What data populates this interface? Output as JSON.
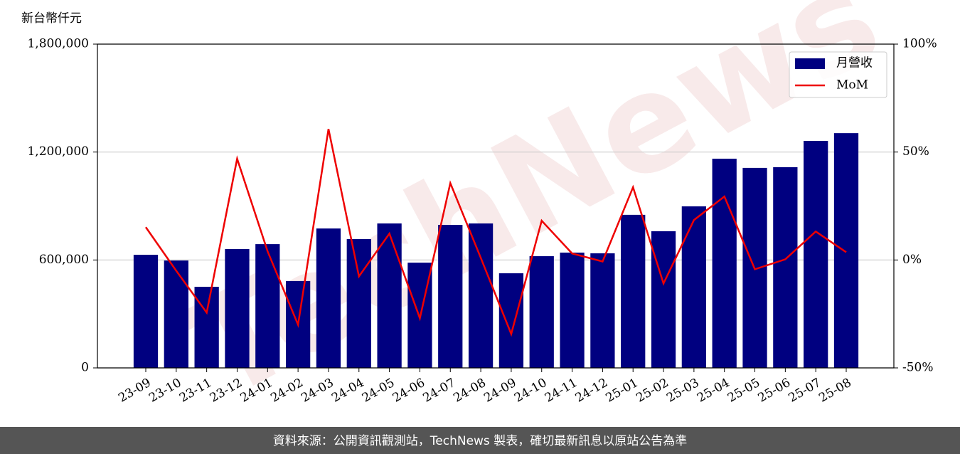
{
  "chart_data": {
    "type": "bar-line",
    "y_label": "新台幣仟元",
    "watermark": "TechNews",
    "footer": "資料來源：公開資訊觀測站，TechNews 製表，確切最新訊息以原站公告為準",
    "categories": [
      "23-09",
      "23-10",
      "23-11",
      "23-12",
      "24-01",
      "24-02",
      "24-03",
      "24-04",
      "24-05",
      "24-06",
      "24-07",
      "24-08",
      "24-09",
      "24-10",
      "24-11",
      "24-12",
      "25-01",
      "25-02",
      "25-03",
      "25-04",
      "25-05",
      "25-06",
      "25-07",
      "25-08"
    ],
    "series": [
      {
        "name": "月營收",
        "type": "bar",
        "color": "#000080",
        "values": [
          629000,
          597000,
          451000,
          661000,
          688000,
          483000,
          775000,
          716000,
          803000,
          585000,
          795000,
          803000,
          526000,
          621000,
          641000,
          637000,
          851000,
          760000,
          898000,
          1163000,
          1112000,
          1116000,
          1262000,
          1305000
        ]
      },
      {
        "name": "MoM",
        "type": "line",
        "color": "#ee0000",
        "axis": "y2",
        "values": [
          15.2,
          -5,
          -24.4,
          46.9,
          4,
          -30,
          60.7,
          -7.6,
          12.2,
          -27,
          35.6,
          1,
          -34.3,
          18.2,
          3,
          -0.7,
          33.7,
          -10.9,
          18.5,
          29.4,
          -4.3,
          0.3,
          13.2,
          3.6
        ]
      }
    ],
    "ylim": [
      0,
      1800000
    ],
    "yticks": [
      0,
      {
        "value": 600000,
        "label": "600,000"
      },
      {
        "value": 1200000,
        "label": "1,200,000"
      },
      {
        "value": 1800000,
        "label": "1,800,000"
      }
    ],
    "y2lim": [
      -50,
      100
    ],
    "y2ticks": [
      {
        "value": -50,
        "label": "-50%"
      },
      {
        "value": 0,
        "label": "0%"
      },
      {
        "value": 50,
        "label": "50%"
      },
      {
        "value": 100,
        "label": "100%"
      }
    ],
    "grid": true,
    "legend": "upper right"
  }
}
